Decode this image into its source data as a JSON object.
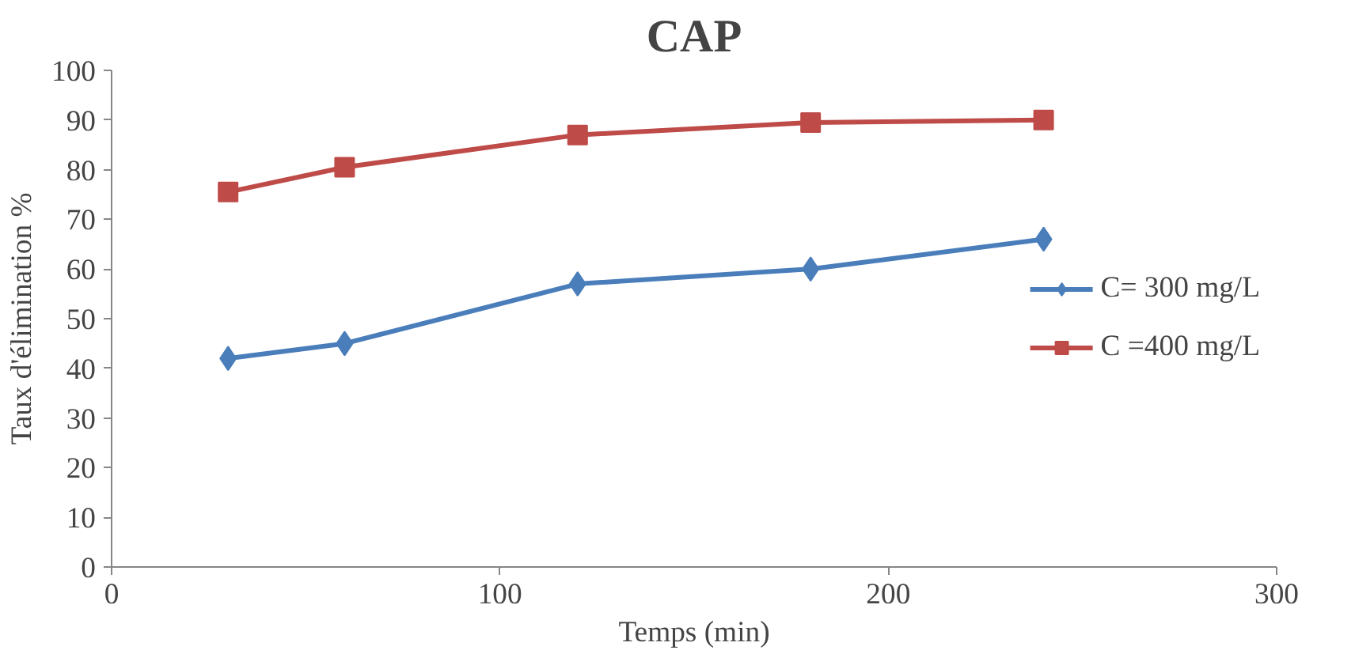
{
  "chart_data": {
    "type": "line",
    "title": "CAP",
    "xlabel": "Temps (min)",
    "ylabel": "Taux d'élimination %",
    "x": [
      30,
      60,
      120,
      180,
      240
    ],
    "series": [
      {
        "name": "C= 300 mg/L",
        "color": "#4a7ebb",
        "marker": "diamond",
        "values": [
          42,
          45,
          57,
          60,
          66
        ]
      },
      {
        "name": "C =400 mg/L",
        "color": "#be4b48",
        "marker": "square",
        "values": [
          75.5,
          80.5,
          87,
          89.5,
          90
        ]
      }
    ],
    "xlim": [
      0,
      300
    ],
    "xticks": [
      0,
      100,
      200,
      300
    ],
    "ylim": [
      0,
      100
    ],
    "yticks": [
      0,
      10,
      20,
      30,
      40,
      50,
      60,
      70,
      80,
      90,
      100
    ],
    "grid": false,
    "legend": "right",
    "line_style": "solid"
  }
}
